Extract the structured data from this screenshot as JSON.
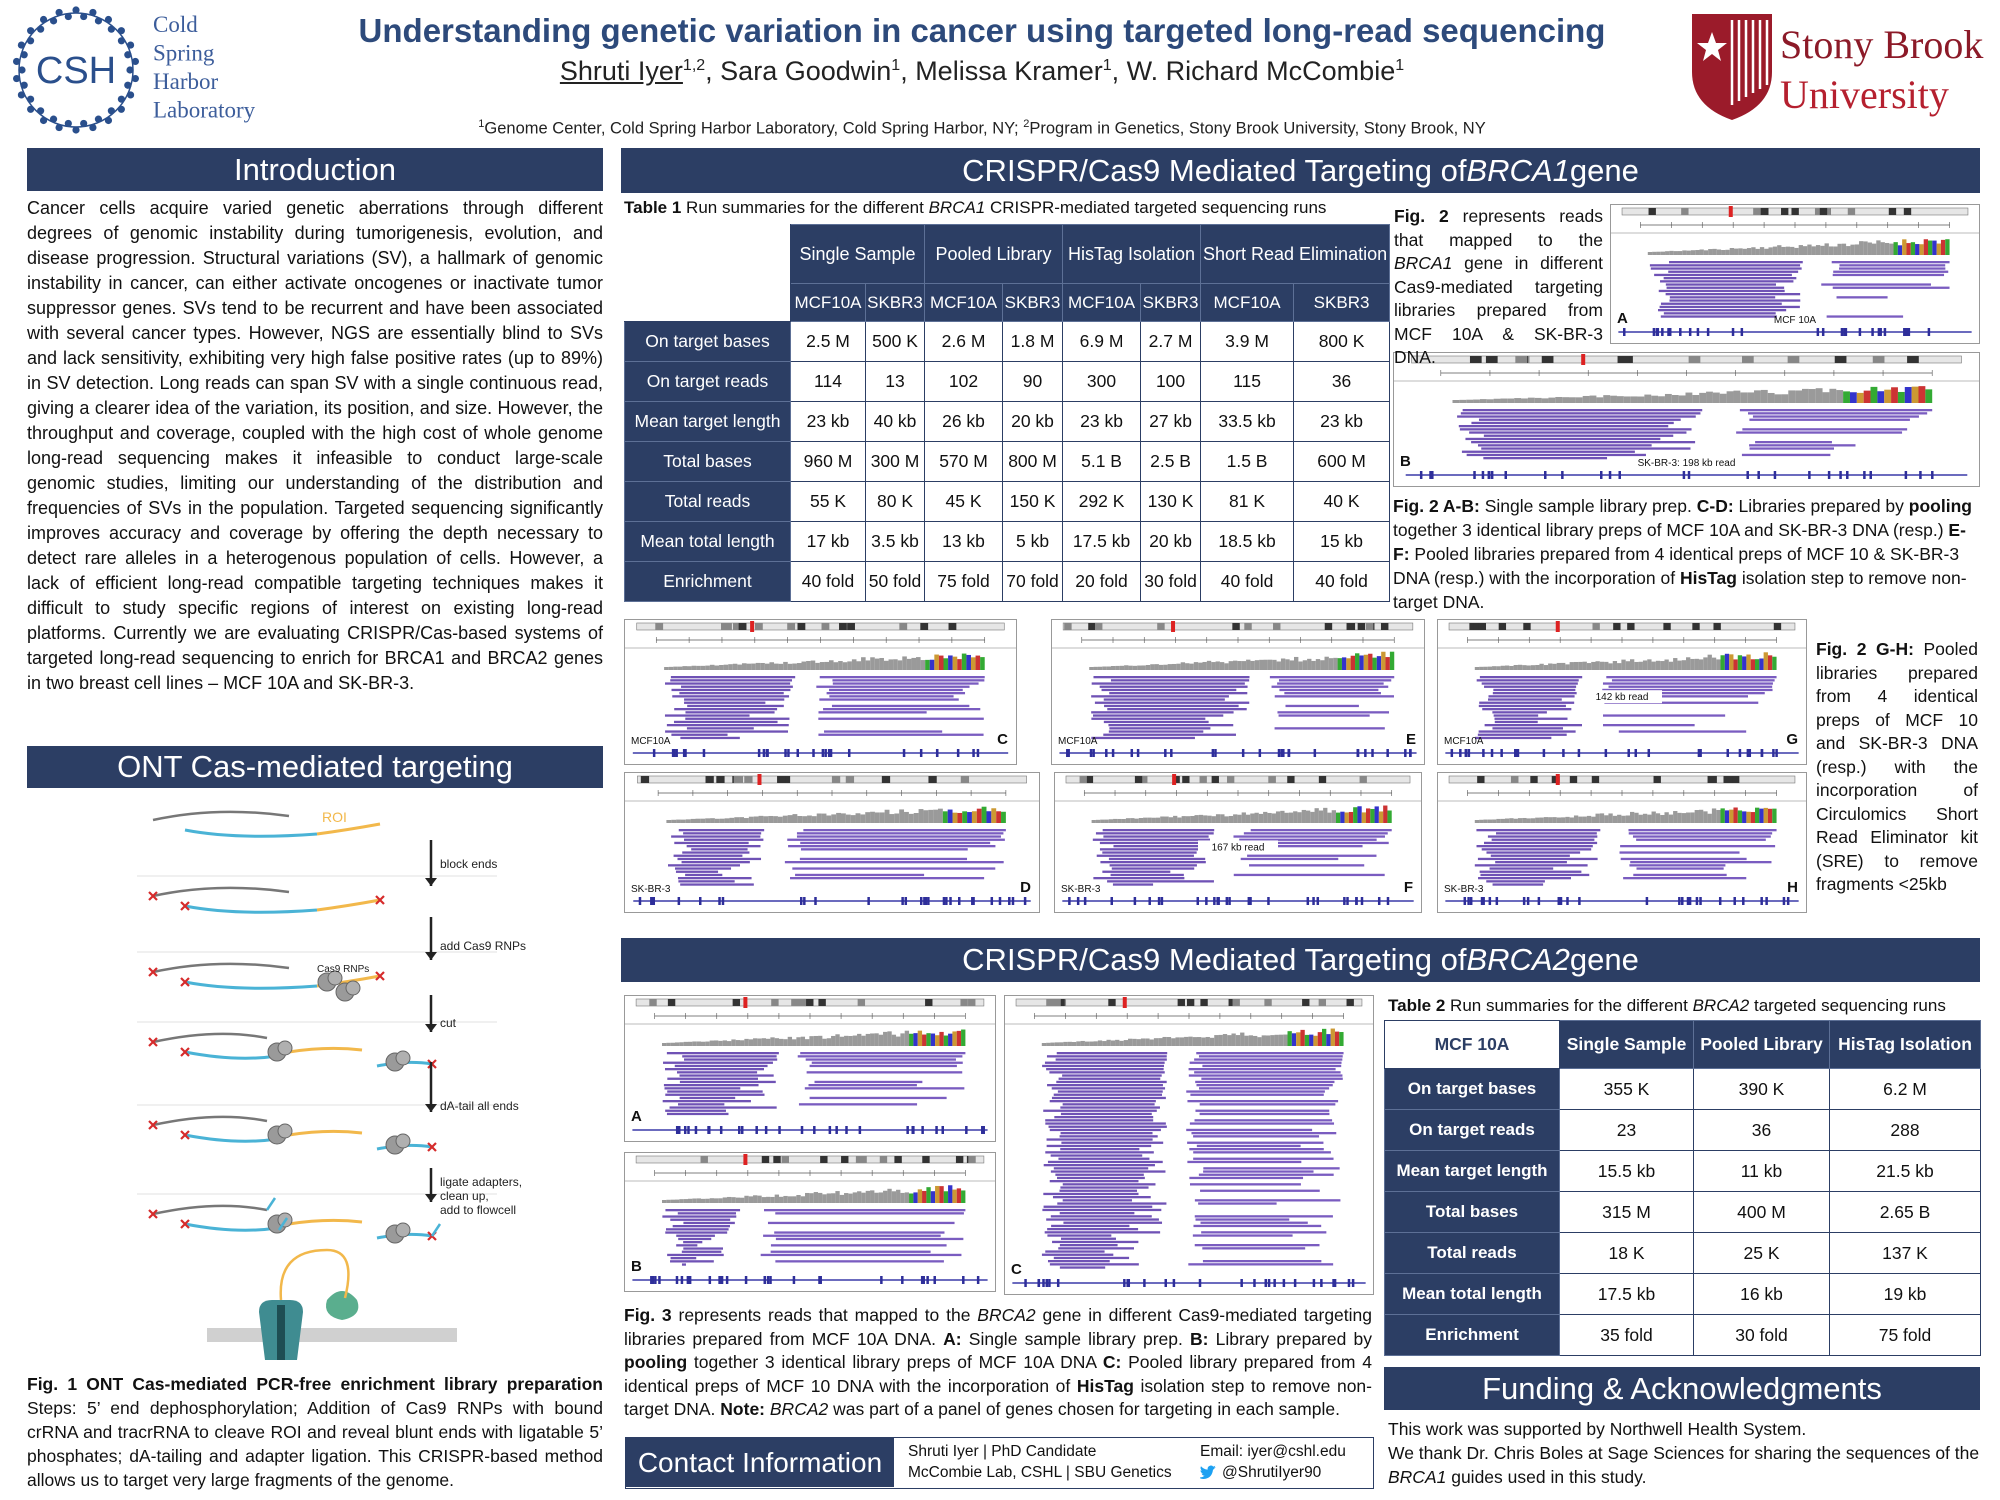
{
  "header": {
    "title": "Understanding genetic variation in cancer using targeted long-read sequencing",
    "authors": [
      {
        "text": "Shruti Iyer",
        "sup": "1,2"
      },
      {
        "text": ", Sara Goodwin",
        "sup": "1"
      },
      {
        "text": ", Melissa Kramer",
        "sup": "1"
      },
      {
        "text": ", W. Richard McCombie",
        "sup": "1"
      }
    ],
    "affiliations": [
      {
        "sup": "1",
        "text": "Genome Center, Cold Spring Harbor Laboratory, Cold Spring Harbor, NY; "
      },
      {
        "sup": "2",
        "text": "Program in Genetics, Stony Brook University, Stony Brook, NY"
      }
    ]
  },
  "logos": {
    "csh_mark": "CSH",
    "csh_name": [
      "Cold",
      "Spring",
      "Harbor",
      "Laboratory"
    ],
    "sbu_name": [
      "Stony Brook",
      "University"
    ]
  },
  "introduction": {
    "heading": "Introduction",
    "text": "Cancer cells acquire varied genetic aberrations through different degrees of genomic instability during tumorigenesis, evolution, and disease progression. Structural variations (SV), a hallmark of genomic instability in cancer, can either activate oncogenes or inactivate tumor suppressor genes. SVs tend to be recurrent and have been associated with several cancer types. However, NGS are essentially blind to SVs and lack sensitivity, exhibiting very high false positive rates (up to 89%) in SV detection. Long reads can span SV with a single continuous read, giving a clearer idea of the variation, its position, and size. However, the throughput and coverage, coupled with the high cost of whole genome long-read sequencing makes it infeasible to conduct large-scale genomic studies, limiting our understanding of the distribution and frequencies of SVs in the population. Targeted sequencing significantly improves accuracy and coverage by offering the depth necessary to detect rare alleles in a heterogenous population of cells. However, a lack of efficient long-read compatible targeting techniques makes it difficult to study specific regions of interest on existing long-read platforms. Currently we are evaluating CRISPR/Cas-based systems of targeted long-read sequencing to enrich for BRCA1 and BRCA2 genes in two breast cell lines – MCF 10A and SK-BR-3."
  },
  "ont": {
    "heading": "ONT Cas-mediated targeting",
    "labels": {
      "roi": "ROI",
      "block": "block ends",
      "add": "add Cas9 RNPs",
      "rnp": "Cas9 RNPs",
      "cut": "cut",
      "datail": "dA-tail all ends",
      "ligate": [
        "ligate adapters,",
        "clean up,",
        "add to flowcell"
      ]
    },
    "caption": [
      {
        "b": "Fig. 1 ONT Cas-mediated PCR-free enrichment library preparation"
      },
      {
        "t": " Steps: 5’ end dephosphorylation; Addition of Cas9 RNPs with bound crRNA and tracrRNA to cleave ROI and reveal blunt ends with ligatable 5’ phosphates; dA-tailing and adapter ligation. This CRISPR-based method allows us to target very large fragments of the genome."
      }
    ]
  },
  "brca1": {
    "heading": [
      {
        "t": "CRISPR/Cas9 Mediated Targeting of "
      },
      {
        "i": "BRCA1"
      },
      {
        "t": " gene"
      }
    ],
    "table_caption": [
      {
        "b": "Table 1"
      },
      {
        "t": " Run summaries for the different "
      },
      {
        "i": "BRCA1"
      },
      {
        "t": " CRISPR-mediated targeted sequencing runs"
      }
    ],
    "table": {
      "groups": [
        "Single Sample",
        "Pooled Library",
        "HisTag Isolation",
        "Short Read Elimination"
      ],
      "subheaders": [
        "MCF10A",
        "SKBR3",
        "MCF10A",
        "SKBR3",
        "MCF10A",
        "SKBR3",
        "MCF10A",
        "SKBR3"
      ],
      "rows": [
        {
          "label": "On target bases",
          "cells": [
            "2.5 M",
            "500 K",
            "2.6 M",
            "1.8 M",
            "6.9 M",
            "2.7 M",
            "3.9 M",
            "800 K"
          ]
        },
        {
          "label": "On target reads",
          "cells": [
            "114",
            "13",
            "102",
            "90",
            "300",
            "100",
            "115",
            "36"
          ]
        },
        {
          "label": "Mean target length",
          "cells": [
            "23 kb",
            "40 kb",
            "26 kb",
            "20 kb",
            "23 kb",
            "27 kb",
            "33.5 kb",
            "23 kb"
          ]
        },
        {
          "label": "Total bases",
          "cells": [
            "960 M",
            "300 M",
            "570 M",
            "800 M",
            "5.1 B",
            "2.5 B",
            "1.5 B",
            "600 M"
          ]
        },
        {
          "label": "Total reads",
          "cells": [
            "55 K",
            "80 K",
            "45 K",
            "150 K",
            "292 K",
            "130 K",
            "81 K",
            "40 K"
          ]
        },
        {
          "label": "Mean total length",
          "cells": [
            "17 kb",
            "3.5 kb",
            "13 kb",
            "5 kb",
            "17.5 kb",
            "20 kb",
            "18.5 kb",
            "15 kb"
          ]
        },
        {
          "label": "Enrichment",
          "cells": [
            "40 fold",
            "50 fold",
            "75 fold",
            "70 fold",
            "20 fold",
            "30 fold",
            "40 fold",
            "40 fold"
          ]
        }
      ]
    },
    "fig_intro": [
      {
        "b": "Fig. 2"
      },
      {
        "t": " represents reads that mapped to the "
      },
      {
        "i": "BRCA1"
      },
      {
        "t": " gene in different Cas9-mediated targeting libraries prepared from MCF 10A & SK-BR-3 DNA."
      }
    ],
    "fig_caption_ab": [
      {
        "b": "Fig. 2 A-B:"
      },
      {
        "t": " Single sample library prep. "
      },
      {
        "b": "C-D:"
      },
      {
        "t": " Libraries prepared by "
      },
      {
        "b": "pooling"
      },
      {
        "t": " together 3 identical library preps of MCF 10A and SK-BR-3 DNA (resp.) "
      },
      {
        "b": "E-F:"
      },
      {
        "t": " Pooled libraries prepared from 4 identical preps of MCF 10 & SK-BR-3 DNA (resp.) with the incorporation of "
      },
      {
        "b": "HisTag"
      },
      {
        "t": " isolation step to remove non-target DNA."
      }
    ],
    "fig_caption_gh": [
      {
        "b": "Fig. 2 G-H:"
      },
      {
        "t": " Pooled libraries prepared from 4 identical preps of MCF 10 and SK-BR-3 DNA (resp.) with the incorporation of Circulomics Short Read Eliminator kit (SRE) to remove fragments <25kb"
      }
    ],
    "panels": [
      {
        "letter": "A",
        "sample": "MCF 10A"
      },
      {
        "letter": "B",
        "sample": "SK-BR-3: 198 kb read"
      },
      {
        "letter": "C",
        "sample": "MCF10A"
      },
      {
        "letter": "D",
        "sample": "SK-BR-3"
      },
      {
        "letter": "E",
        "sample": "MCF10A"
      },
      {
        "letter": "F",
        "sample": "SK-BR-3",
        "note": "167 kb read"
      },
      {
        "letter": "G",
        "sample": "MCF10A",
        "note": "142 kb read"
      },
      {
        "letter": "H",
        "sample": "SK-BR-3"
      }
    ]
  },
  "brca2": {
    "heading": [
      {
        "t": "CRISPR/Cas9 Mediated Targeting of "
      },
      {
        "i": "BRCA2"
      },
      {
        "t": " gene"
      }
    ],
    "panels": [
      {
        "letter": "A"
      },
      {
        "letter": "B"
      },
      {
        "letter": "C"
      }
    ],
    "fig_caption": [
      {
        "b": "Fig. 3"
      },
      {
        "t": " represents reads that mapped to the "
      },
      {
        "i": "BRCA2"
      },
      {
        "t": " gene in different Cas9-mediated targeting libraries prepared from MCF 10A DNA. "
      },
      {
        "b": "A:"
      },
      {
        "t": " Single sample library prep. "
      },
      {
        "b": "B:"
      },
      {
        "t": " Library prepared by "
      },
      {
        "b": "pooling"
      },
      {
        "t": " together 3 identical library preps of MCF 10A DNA "
      },
      {
        "b": "C:"
      },
      {
        "t": " Pooled library prepared from 4 identical preps of MCF 10 DNA with the incorporation of "
      },
      {
        "b": "HisTag"
      },
      {
        "t": " isolation step to remove non-target DNA. "
      },
      {
        "b": "Note:"
      },
      {
        "i": " BRCA2"
      },
      {
        "t": " was part of a panel of genes chosen for targeting in each sample."
      }
    ],
    "table_caption": [
      {
        "b": "Table 2"
      },
      {
        "t": " Run summaries for the different "
      },
      {
        "i": "BRCA2"
      },
      {
        "t": " targeted sequencing runs"
      }
    ],
    "table": {
      "columns": [
        "MCF 10A",
        "Single Sample",
        "Pooled Library",
        "HisTag Isolation"
      ],
      "rows": [
        {
          "label": "On target bases",
          "cells": [
            "355 K",
            "390 K",
            "6.2 M"
          ]
        },
        {
          "label": "On target reads",
          "cells": [
            "23",
            "36",
            "288"
          ]
        },
        {
          "label": "Mean target length",
          "cells": [
            "15.5 kb",
            "11 kb",
            "21.5 kb"
          ]
        },
        {
          "label": "Total bases",
          "cells": [
            "315 M",
            "400 M",
            "2.65 B"
          ]
        },
        {
          "label": "Total reads",
          "cells": [
            "18 K",
            "25 K",
            "137 K"
          ]
        },
        {
          "label": "Mean total length",
          "cells": [
            "17.5 kb",
            "16 kb",
            "19 kb"
          ]
        },
        {
          "label": "Enrichment",
          "cells": [
            "35 fold",
            "30 fold",
            "75 fold"
          ]
        }
      ]
    }
  },
  "funding": {
    "heading": "Funding & Acknowledgments",
    "paragraphs": [
      [
        {
          "t": "This work was supported by Northwell Health System."
        }
      ],
      [
        {
          "t": "We thank Dr. Chris Boles at Sage Sciences for sharing the sequences of the "
        },
        {
          "i": "BRCA1"
        },
        {
          "t": " guides used in this study."
        }
      ]
    ]
  },
  "contact": {
    "heading": "Contact Information",
    "lines": [
      "Shruti Iyer | PhD Candidate",
      "McCombie Lab, CSHL | SBU Genetics"
    ],
    "email": "Email: iyer@cshl.edu",
    "twitter": "@ShrutiIyer90"
  }
}
